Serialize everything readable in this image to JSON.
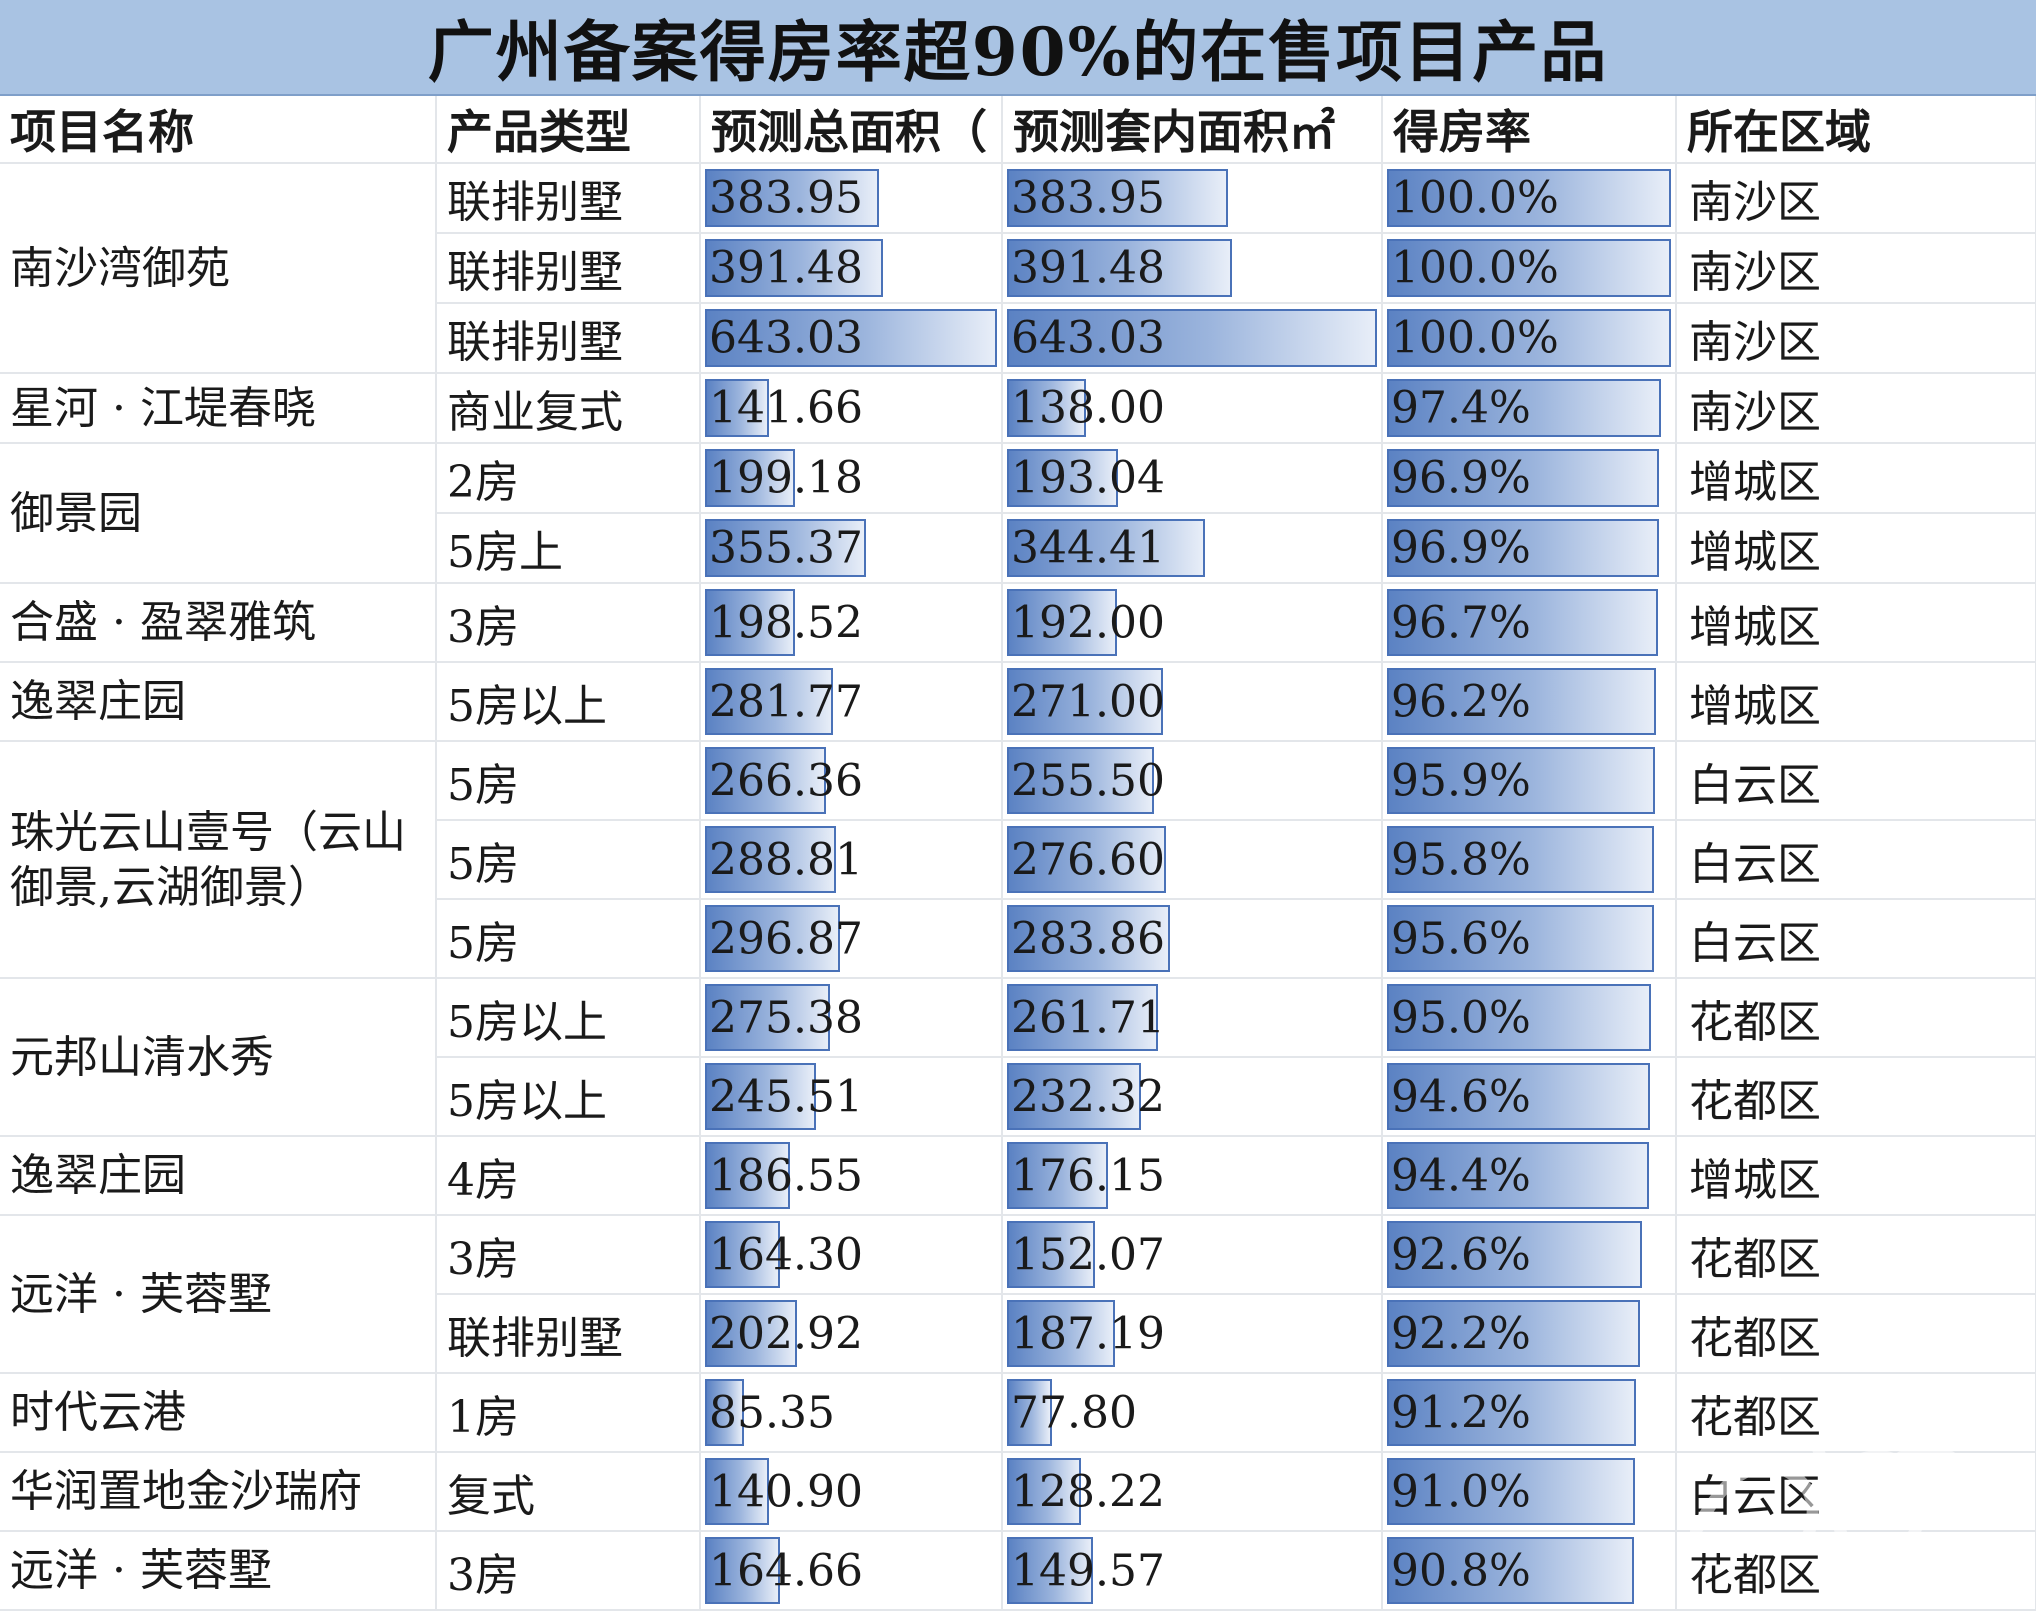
{
  "title": "广州备案得房率超90%的在售项目产品",
  "headers": [
    "项目名称",
    "产品类型",
    "预测总面积（",
    "预测套内面积㎡",
    "得房率",
    "所在区域"
  ],
  "bar_color": "#5b82c3",
  "rows": [
    {
      "name": "南沙湾御苑",
      "type": "联排别墅",
      "total": "383.95",
      "inner": "383.95",
      "rate": "100.0%",
      "region": "南沙区"
    },
    {
      "name": "",
      "type": "联排别墅",
      "total": "391.48",
      "inner": "391.48",
      "rate": "100.0%",
      "region": "南沙区"
    },
    {
      "name": "",
      "type": "联排别墅",
      "total": "643.03",
      "inner": "643.03",
      "rate": "100.0%",
      "region": "南沙区"
    },
    {
      "name": "星河 · 江堤春晓",
      "type": "商业复式",
      "total": "141.66",
      "inner": "138.00",
      "rate": "97.4%",
      "region": "南沙区"
    },
    {
      "name": "御景园",
      "type": "2房",
      "total": "199.18",
      "inner": "193.04",
      "rate": "96.9%",
      "region": "增城区"
    },
    {
      "name": "",
      "type": "5房上",
      "total": "355.37",
      "inner": "344.41",
      "rate": "96.9%",
      "region": "增城区"
    },
    {
      "name": "合盛 · 盈翠雅筑",
      "type": "3房",
      "total": "198.52",
      "inner": "192.00",
      "rate": "96.7%",
      "region": "增城区"
    },
    {
      "name": "逸翠庄园",
      "type": "5房以上",
      "total": "281.77",
      "inner": "271.00",
      "rate": "96.2%",
      "region": "增城区"
    },
    {
      "name": "珠光云山壹号（云山御景,云湖御景）",
      "type": "5房",
      "total": "266.36",
      "inner": "255.50",
      "rate": "95.9%",
      "region": "白云区"
    },
    {
      "name": "",
      "type": "5房",
      "total": "288.81",
      "inner": "276.60",
      "rate": "95.8%",
      "region": "白云区"
    },
    {
      "name": "",
      "type": "5房",
      "total": "296.87",
      "inner": "283.86",
      "rate": "95.6%",
      "region": "白云区"
    },
    {
      "name": "元邦山清水秀",
      "type": "5房以上",
      "total": "275.38",
      "inner": "261.71",
      "rate": "95.0%",
      "region": "花都区"
    },
    {
      "name": "",
      "type": "5房以上",
      "total": "245.51",
      "inner": "232.32",
      "rate": "94.6%",
      "region": "花都区"
    },
    {
      "name": "逸翠庄园",
      "type": "4房",
      "total": "186.55",
      "inner": "176.15",
      "rate": "94.4%",
      "region": "增城区"
    },
    {
      "name": "远洋 · 芙蓉墅",
      "type": "3房",
      "total": "164.30",
      "inner": "152.07",
      "rate": "92.6%",
      "region": "花都区"
    },
    {
      "name": "",
      "type": "联排别墅",
      "total": "202.92",
      "inner": "187.19",
      "rate": "92.2%",
      "region": "花都区"
    },
    {
      "name": "时代云港",
      "type": "1房",
      "total": "85.35",
      "inner": "77.80",
      "rate": "91.2%",
      "region": "花都区"
    },
    {
      "name": "华润置地金沙瑞府",
      "type": "复式",
      "total": "140.90",
      "inner": "128.22",
      "rate": "91.0%",
      "region": "白云区"
    },
    {
      "name": "远洋 · 芙蓉墅",
      "type": "3房",
      "total": "164.66",
      "inner": "149.57",
      "rate": "90.8%",
      "region": "花都区"
    }
  ],
  "name_spans": [
    3,
    0,
    0,
    1,
    2,
    0,
    1,
    1,
    3,
    0,
    0,
    2,
    0,
    1,
    2,
    0,
    1,
    1,
    1
  ],
  "bar_max": {
    "total": 643.03,
    "inner": 643.03,
    "rate_min": 85.0,
    "rate_max": 100.0
  }
}
